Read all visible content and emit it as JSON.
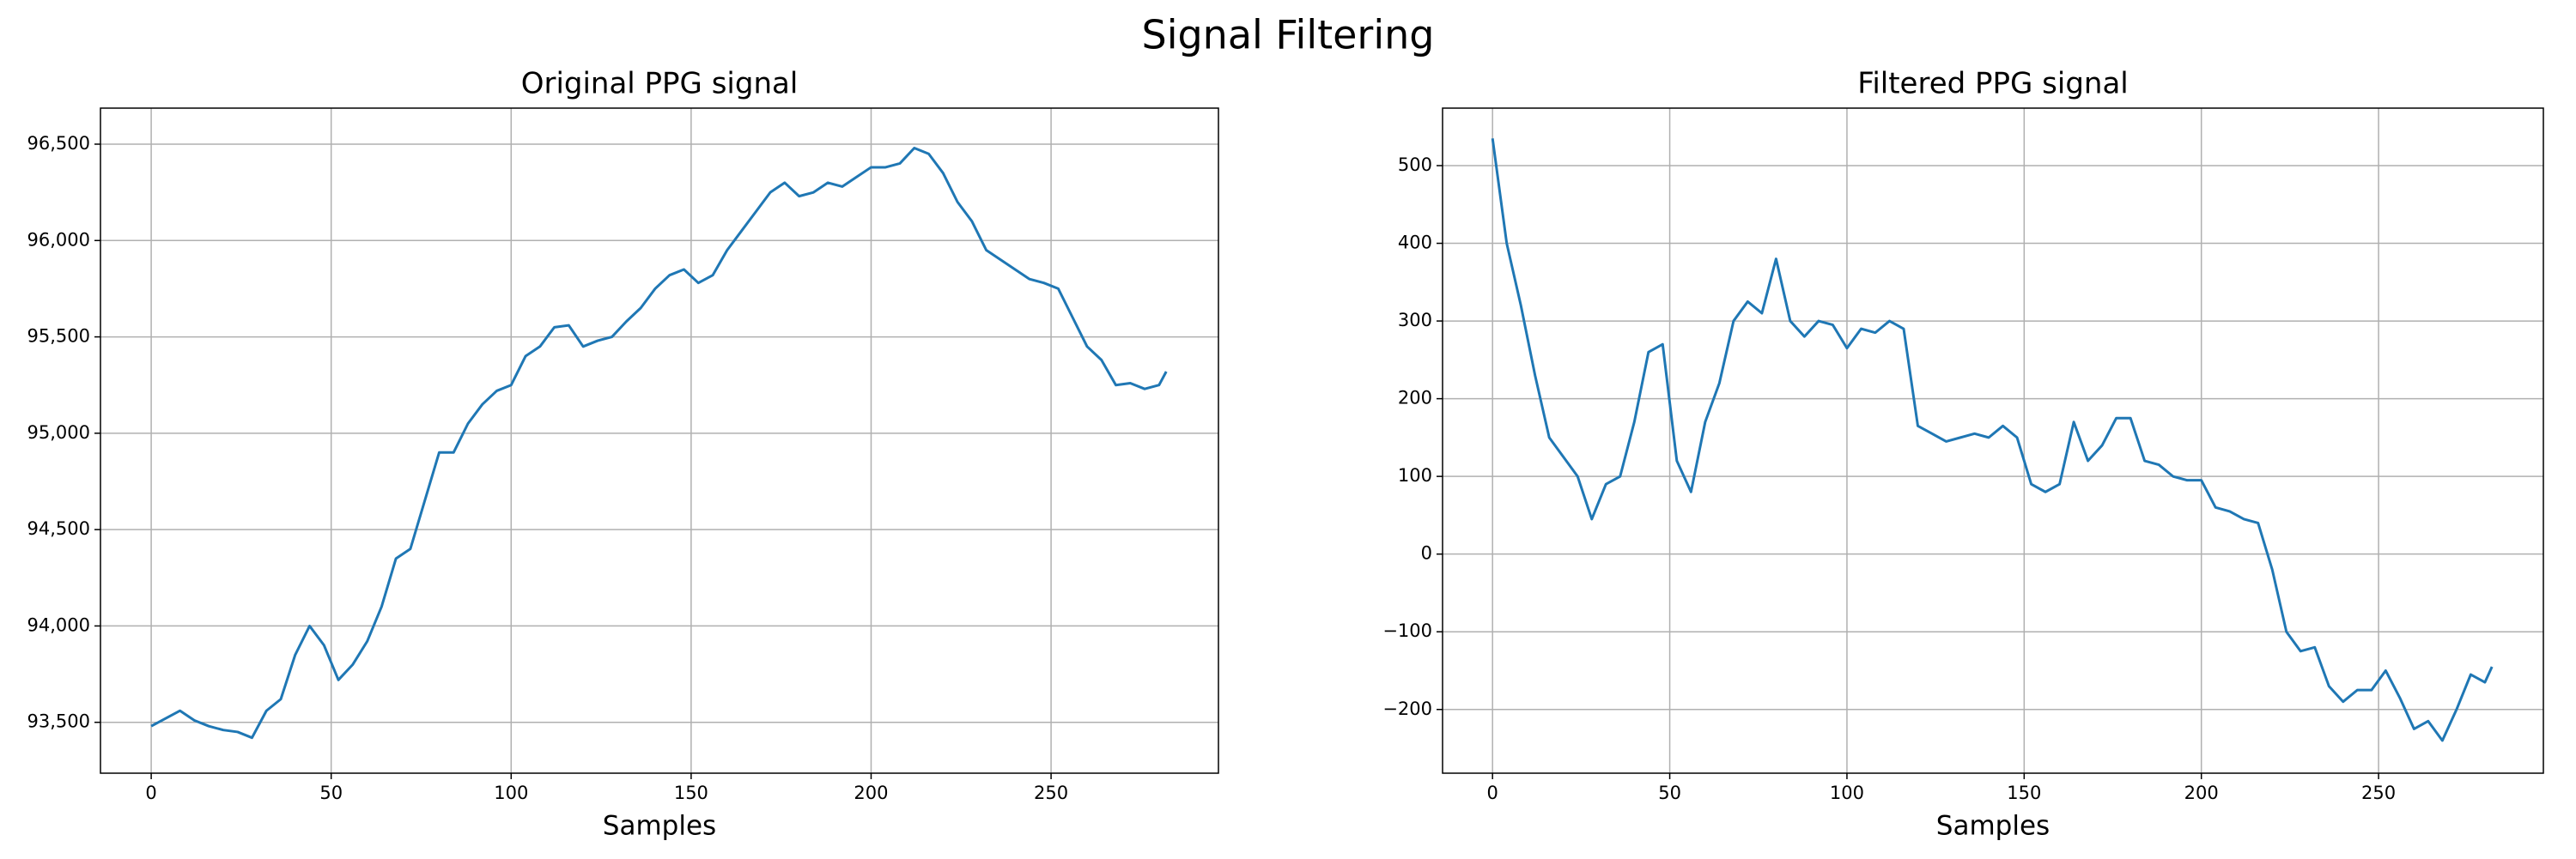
{
  "title": "Signal Filtering",
  "chart_data": [
    {
      "type": "line",
      "title": "Original PPG signal",
      "x_label": "Samples",
      "color": "#1f77b4",
      "grid": true,
      "x": [
        0,
        4,
        8,
        12,
        16,
        20,
        24,
        28,
        32,
        36,
        40,
        44,
        48,
        52,
        56,
        60,
        64,
        68,
        72,
        76,
        80,
        84,
        88,
        92,
        96,
        100,
        104,
        108,
        112,
        116,
        120,
        124,
        128,
        132,
        136,
        140,
        144,
        148,
        152,
        156,
        160,
        164,
        168,
        172,
        176,
        180,
        184,
        188,
        192,
        196,
        200,
        204,
        208,
        212,
        216,
        220,
        224,
        228,
        232,
        236,
        240,
        244,
        248,
        252,
        256,
        260,
        264,
        268,
        272,
        276,
        280,
        282
      ],
      "values": [
        93480,
        93520,
        93560,
        93510,
        93480,
        93460,
        93450,
        93420,
        93560,
        93620,
        93850,
        94000,
        93900,
        93720,
        93800,
        93920,
        94100,
        94350,
        94400,
        94650,
        94900,
        94900,
        95050,
        95150,
        95220,
        95250,
        95400,
        95450,
        95550,
        95560,
        95450,
        95480,
        95500,
        95580,
        95650,
        95750,
        95820,
        95850,
        95780,
        95820,
        95950,
        96050,
        96150,
        96250,
        96300,
        96230,
        96250,
        96300,
        96280,
        96330,
        96380,
        96380,
        96400,
        96480,
        96450,
        96350,
        96200,
        96100,
        95950,
        95900,
        95850,
        95800,
        95780,
        95750,
        95600,
        95450,
        95380,
        95250,
        95260,
        95230,
        95250,
        95320
      ],
      "xlim": [
        -14.1,
        296.5
      ],
      "ylim": [
        93236,
        96687
      ],
      "xticks": [
        0,
        50,
        100,
        150,
        200,
        250
      ],
      "yticks": [
        {
          "value": 93500,
          "label": "93,500"
        },
        {
          "value": 94000,
          "label": "94,000"
        },
        {
          "value": 94500,
          "label": "94,500"
        },
        {
          "value": 95000,
          "label": "95,000"
        },
        {
          "value": 95500,
          "label": "95,500"
        },
        {
          "value": 96000,
          "label": "96,000"
        },
        {
          "value": 96500,
          "label": "96,500"
        }
      ]
    },
    {
      "type": "line",
      "title": "Filtered PPG signal",
      "x_label": "Samples",
      "color": "#1f77b4",
      "grid": true,
      "x": [
        0,
        4,
        8,
        12,
        16,
        20,
        24,
        28,
        32,
        36,
        40,
        44,
        48,
        52,
        56,
        60,
        64,
        68,
        72,
        76,
        80,
        84,
        88,
        92,
        96,
        100,
        104,
        108,
        112,
        116,
        120,
        124,
        128,
        132,
        136,
        140,
        144,
        148,
        152,
        156,
        160,
        164,
        168,
        172,
        176,
        180,
        184,
        188,
        192,
        196,
        200,
        204,
        208,
        212,
        216,
        220,
        224,
        228,
        232,
        236,
        240,
        244,
        248,
        252,
        256,
        260,
        264,
        268,
        272,
        276,
        280,
        282
      ],
      "values": [
        535,
        400,
        320,
        230,
        150,
        125,
        100,
        45,
        90,
        100,
        170,
        260,
        270,
        120,
        80,
        170,
        220,
        300,
        325,
        310,
        380,
        300,
        280,
        300,
        295,
        265,
        290,
        285,
        300,
        290,
        165,
        155,
        145,
        150,
        155,
        150,
        165,
        150,
        90,
        80,
        90,
        170,
        120,
        140,
        175,
        175,
        120,
        115,
        100,
        95,
        95,
        60,
        55,
        45,
        40,
        -20,
        -100,
        -125,
        -120,
        -170,
        -190,
        -175,
        -175,
        -150,
        -185,
        -225,
        -215,
        -240,
        -200,
        -155,
        -165,
        -145
      ],
      "xlim": [
        -14.1,
        296.5
      ],
      "ylim": [
        -282,
        574
      ],
      "xticks": [
        0,
        50,
        100,
        150,
        200,
        250
      ],
      "yticks": [
        {
          "value": -200,
          "label": "−200"
        },
        {
          "value": -100,
          "label": "−100"
        },
        0,
        100,
        200,
        300,
        400,
        500
      ]
    }
  ]
}
